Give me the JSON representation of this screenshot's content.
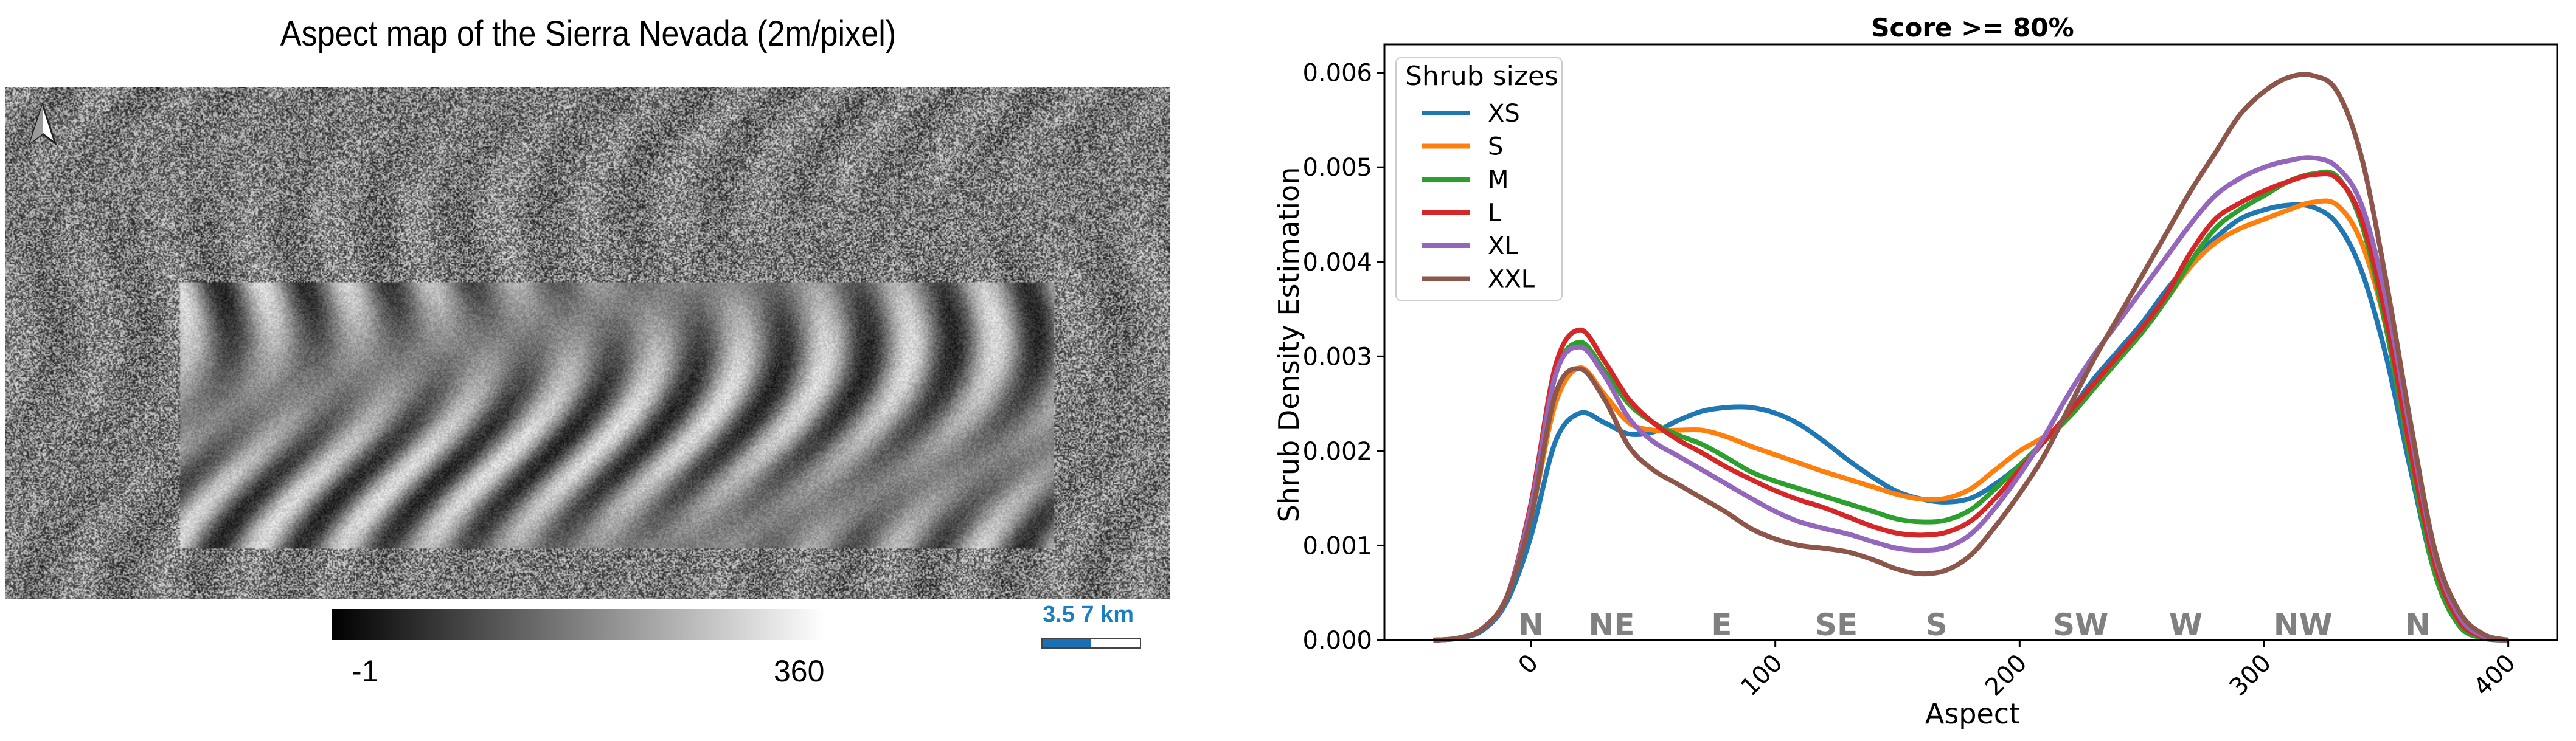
{
  "map": {
    "title": "Aspect map of the Sierra Nevada (2m/pixel)",
    "colorbar_min": "-1",
    "colorbar_max": "360",
    "scale_label": "3.5 7 km",
    "scale_color": "#1a7fc1"
  },
  "chart_data": {
    "type": "line",
    "title": "Score >= 80%",
    "xlabel": "Aspect",
    "ylabel": "Shrub Density Estimation",
    "xlim": [
      -60,
      420
    ],
    "ylim": [
      0,
      0.0063
    ],
    "xticks": [
      0,
      100,
      200,
      300,
      400
    ],
    "xtick_labels": [
      "0",
      "100",
      "200",
      "300",
      "400"
    ],
    "yticks": [
      0,
      0.001,
      0.002,
      0.003,
      0.004,
      0.005,
      0.006
    ],
    "ytick_labels": [
      "0.000",
      "0.001",
      "0.002",
      "0.003",
      "0.004",
      "0.005",
      "0.006"
    ],
    "legend": {
      "title": "Shrub sizes",
      "placement": "top-left"
    },
    "annotations": [
      {
        "text": "N",
        "x": 0
      },
      {
        "text": "NE",
        "x": 33
      },
      {
        "text": "E",
        "x": 78
      },
      {
        "text": "SE",
        "x": 125
      },
      {
        "text": "S",
        "x": 166
      },
      {
        "text": "SW",
        "x": 225
      },
      {
        "text": "W",
        "x": 268
      },
      {
        "text": "NW",
        "x": 316
      },
      {
        "text": "N",
        "x": 363
      }
    ],
    "annotation_color": "#808080",
    "x": [
      -40,
      -30,
      -20,
      -10,
      0,
      10,
      20,
      30,
      40,
      50,
      60,
      70,
      80,
      90,
      100,
      110,
      120,
      130,
      140,
      150,
      160,
      170,
      180,
      190,
      200,
      210,
      220,
      230,
      240,
      250,
      260,
      270,
      280,
      290,
      300,
      310,
      320,
      330,
      340,
      350,
      360,
      370,
      380,
      390,
      400
    ],
    "series": [
      {
        "name": "XS",
        "color": "#1f77b4",
        "values": [
          0,
          2e-05,
          0.0001,
          0.0004,
          0.0011,
          0.0021,
          0.0024,
          0.0023,
          0.00218,
          0.0022,
          0.00232,
          0.00242,
          0.00246,
          0.00246,
          0.0024,
          0.00228,
          0.0021,
          0.0019,
          0.00172,
          0.00157,
          0.00149,
          0.00146,
          0.0015,
          0.00165,
          0.00185,
          0.0021,
          0.0024,
          0.00275,
          0.00305,
          0.00335,
          0.0037,
          0.004,
          0.00425,
          0.00445,
          0.00455,
          0.0046,
          0.00458,
          0.0044,
          0.0039,
          0.003,
          0.0018,
          0.0007,
          0.00015,
          2e-05,
          0
        ]
      },
      {
        "name": "S",
        "color": "#ff7f0e",
        "values": [
          0,
          2e-05,
          0.00012,
          0.00045,
          0.0013,
          0.0025,
          0.00288,
          0.0026,
          0.0023,
          0.00222,
          0.00222,
          0.00222,
          0.00215,
          0.00205,
          0.00196,
          0.00187,
          0.00178,
          0.0017,
          0.00162,
          0.00154,
          0.00149,
          0.0015,
          0.0016,
          0.0018,
          0.002,
          0.00215,
          0.00235,
          0.00265,
          0.00295,
          0.00325,
          0.0036,
          0.00395,
          0.0042,
          0.00435,
          0.00445,
          0.00455,
          0.00463,
          0.0046,
          0.0042,
          0.0033,
          0.002,
          0.0008,
          0.0002,
          3e-05,
          0
        ]
      },
      {
        "name": "M",
        "color": "#2ca02c",
        "values": [
          0,
          2e-05,
          0.00012,
          0.00045,
          0.0014,
          0.0028,
          0.00315,
          0.00285,
          0.0025,
          0.0023,
          0.00217,
          0.00207,
          0.00193,
          0.00178,
          0.00168,
          0.0016,
          0.00152,
          0.00144,
          0.00136,
          0.00128,
          0.00125,
          0.00127,
          0.00138,
          0.0016,
          0.00185,
          0.0021,
          0.00235,
          0.00265,
          0.00295,
          0.00325,
          0.0036,
          0.004,
          0.00435,
          0.00455,
          0.0047,
          0.00485,
          0.00493,
          0.0049,
          0.0044,
          0.0033,
          0.0019,
          0.0007,
          0.00015,
          2e-05,
          0
        ]
      },
      {
        "name": "L",
        "color": "#d62728",
        "values": [
          0,
          2e-05,
          0.00012,
          0.00045,
          0.00145,
          0.0029,
          0.00328,
          0.00295,
          0.00255,
          0.0023,
          0.00212,
          0.00198,
          0.00183,
          0.0017,
          0.00158,
          0.00148,
          0.0014,
          0.0013,
          0.0012,
          0.00113,
          0.00111,
          0.00114,
          0.00126,
          0.0015,
          0.0018,
          0.0021,
          0.0024,
          0.0027,
          0.003,
          0.0033,
          0.00365,
          0.0041,
          0.00445,
          0.00462,
          0.00475,
          0.00485,
          0.00492,
          0.00488,
          0.00445,
          0.0034,
          0.002,
          0.0008,
          0.0002,
          3e-05,
          0
        ]
      },
      {
        "name": "XL",
        "color": "#9467bd",
        "values": [
          0,
          2e-05,
          0.00012,
          0.00045,
          0.0014,
          0.0028,
          0.0031,
          0.0028,
          0.00235,
          0.0021,
          0.00195,
          0.0018,
          0.00165,
          0.0015,
          0.00136,
          0.00125,
          0.00118,
          0.00112,
          0.00104,
          0.00097,
          0.00095,
          0.00098,
          0.00112,
          0.0014,
          0.00175,
          0.00215,
          0.0026,
          0.003,
          0.00335,
          0.0037,
          0.00405,
          0.0044,
          0.0047,
          0.00488,
          0.005,
          0.00507,
          0.0051,
          0.005,
          0.0046,
          0.0036,
          0.0022,
          0.0009,
          0.00025,
          4e-05,
          0
        ]
      },
      {
        "name": "XXL",
        "color": "#8c564b",
        "values": [
          0,
          2e-05,
          0.00012,
          0.00045,
          0.0013,
          0.0026,
          0.00287,
          0.00255,
          0.00205,
          0.0018,
          0.00165,
          0.0015,
          0.00135,
          0.00118,
          0.00107,
          0.001,
          0.00097,
          0.00093,
          0.00085,
          0.00075,
          0.0007,
          0.00074,
          0.0009,
          0.0012,
          0.00155,
          0.00195,
          0.00245,
          0.00295,
          0.0034,
          0.00385,
          0.0043,
          0.00475,
          0.00515,
          0.00555,
          0.0058,
          0.00595,
          0.00597,
          0.0058,
          0.0051,
          0.0038,
          0.0023,
          0.00095,
          0.0003,
          6e-05,
          0
        ]
      }
    ]
  }
}
